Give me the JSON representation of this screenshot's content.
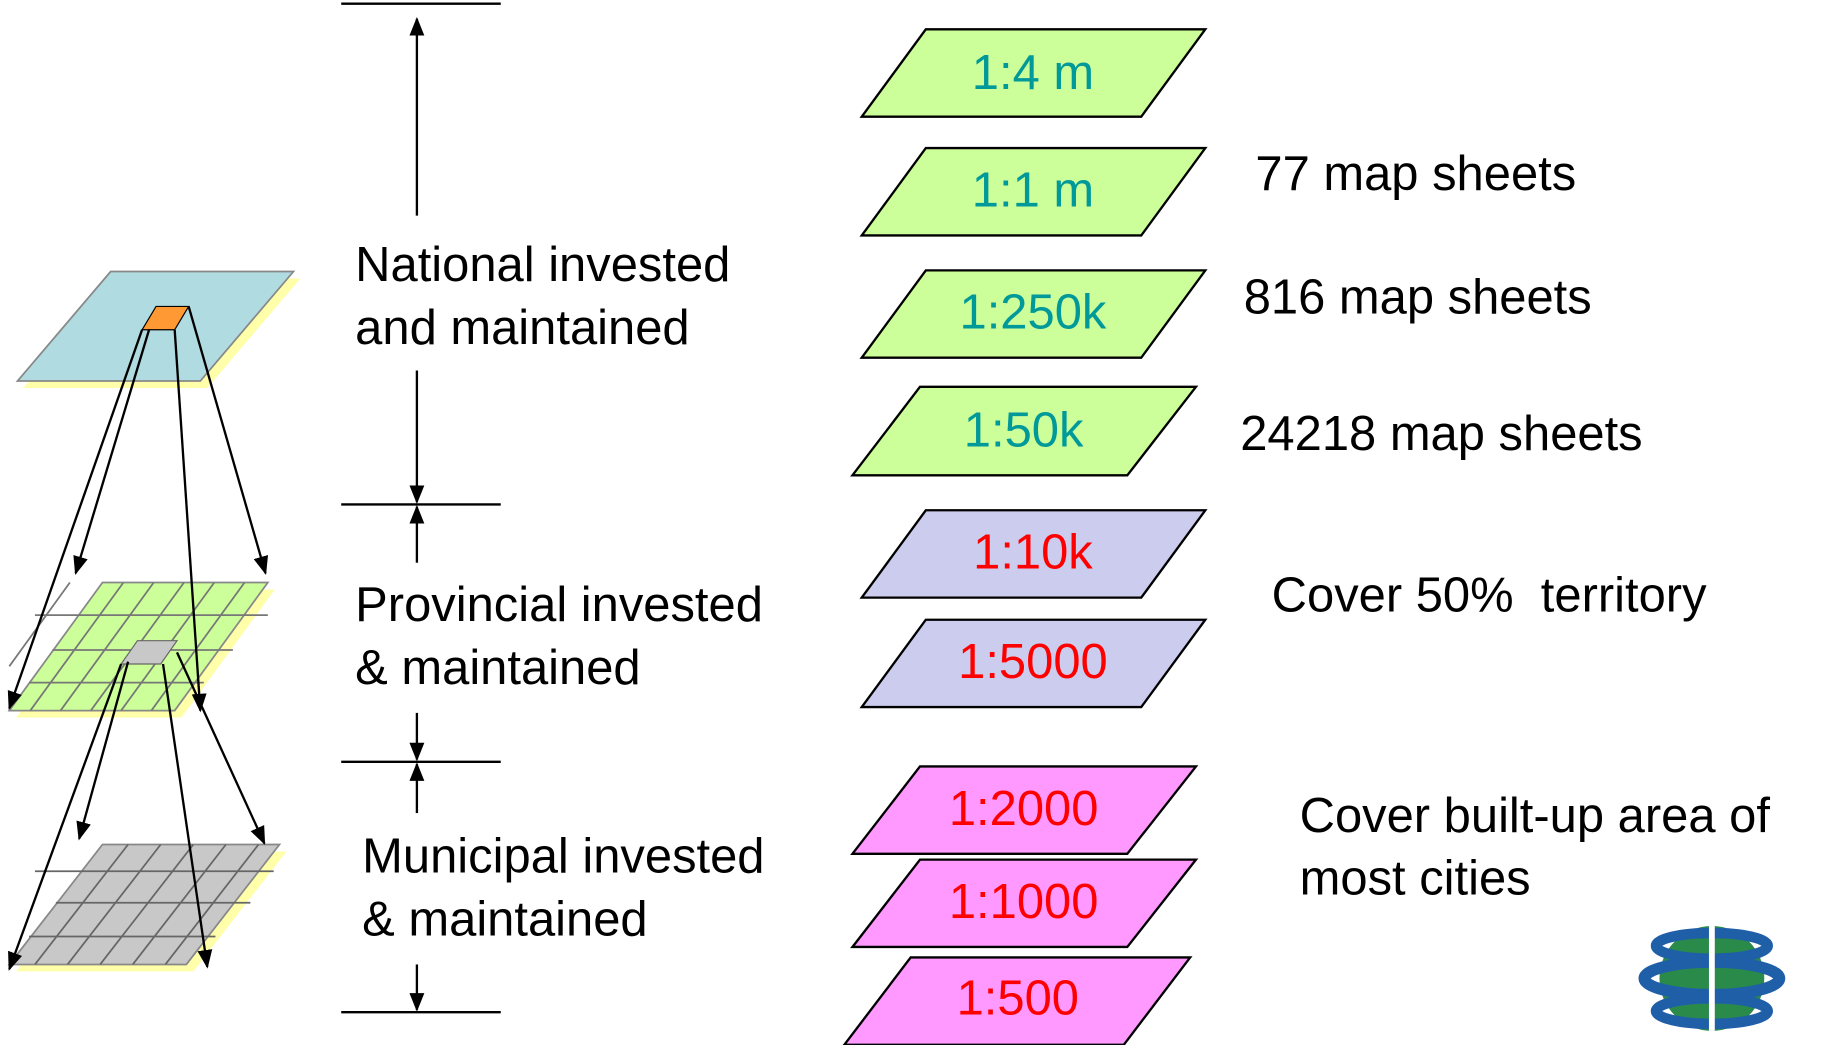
{
  "tiers": [
    {
      "lines": [
        "National invested",
        "and maintained"
      ]
    },
    {
      "lines": [
        "Provincial invested",
        "& maintained"
      ]
    },
    {
      "lines": [
        "Municipal invested",
        "& maintained"
      ]
    }
  ],
  "scales": [
    "1:4 m",
    "1:1 m",
    "1:250k",
    "1:50k",
    "1:10k",
    "1:5000",
    "1:2000",
    "1:1000",
    "1:500"
  ],
  "notes": [
    {
      "lines": [
        "77 map sheets"
      ]
    },
    {
      "lines": [
        "816 map sheets"
      ]
    },
    {
      "lines": [
        "24218 map sheets"
      ]
    },
    {
      "lines": [
        "Cover 50%  territory"
      ]
    },
    {
      "lines": [
        "Cover built-up area of",
        "most cities"
      ]
    }
  ]
}
